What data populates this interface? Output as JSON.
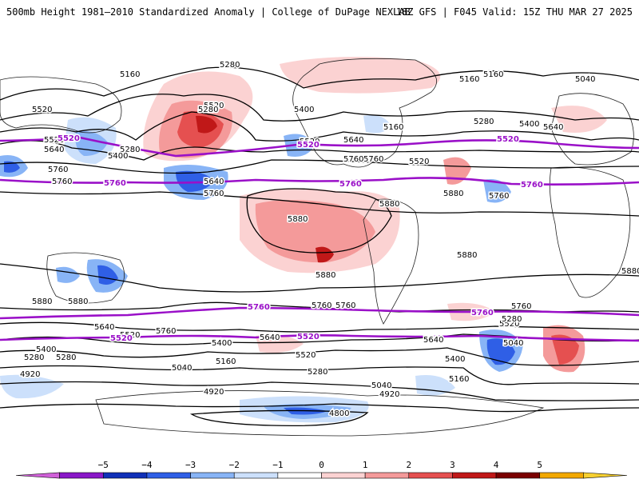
{
  "header": {
    "title_left": "500mb Height 1981–2010 Standardized Anomaly | College of DuPage NEXLAB",
    "title_right": "18Z GFS | F045 Valid: 15Z THU MAR 27 2025"
  },
  "colors": {
    "land": "#ffffff",
    "coast": "#222222",
    "contour": "#000000",
    "highlight_contour": "#9a10c8"
  },
  "colorbar": {
    "labels": [
      "−5",
      "−4",
      "−3",
      "−2",
      "−1",
      "0",
      "1",
      "2",
      "3",
      "4",
      "5"
    ],
    "bins": [
      {
        "color": "#d060d8"
      },
      {
        "color": "#8a18c8"
      },
      {
        "color": "#1030b8"
      },
      {
        "color": "#2f5fe6"
      },
      {
        "color": "#88b4f6"
      },
      {
        "color": "#cce0fb"
      },
      {
        "color": "#ffffff"
      },
      {
        "color": "#fbd2d2"
      },
      {
        "color": "#f49a9a"
      },
      {
        "color": "#e55050"
      },
      {
        "color": "#c01818"
      },
      {
        "color": "#7a0000"
      },
      {
        "color": "#f2a800"
      },
      {
        "color": "#f7d030"
      }
    ]
  },
  "contour_labels": [
    "5160",
    "5280",
    "5160",
    "5160",
    "5040",
    "5520",
    "5520",
    "5400",
    "5280",
    "5640",
    "5520",
    "5640",
    "5280",
    "5400",
    "5520",
    "5640",
    "5160",
    "5520",
    "5400",
    "5280",
    "5760",
    "5760",
    "5640",
    "5760",
    "5760",
    "5520",
    "5760",
    "5760",
    "5880",
    "5880",
    "5880",
    "5880",
    "5880",
    "5880",
    "5880",
    "5880",
    "5760",
    "5760",
    "5760",
    "5760",
    "5760",
    "5640",
    "5760",
    "5640",
    "5640",
    "5520",
    "5520",
    "5520",
    "5520",
    "5400",
    "5400",
    "5400",
    "5280",
    "5280",
    "5280",
    "5280",
    "5280",
    "5160",
    "5160",
    "5040",
    "5040",
    "4920",
    "4920",
    "4920",
    "4800",
    "5040"
  ],
  "highlight_labels": [
    "5520",
    "5520",
    "5520",
    "5760",
    "5760",
    "5760",
    "5760",
    "5760",
    "5520",
    "5520"
  ]
}
